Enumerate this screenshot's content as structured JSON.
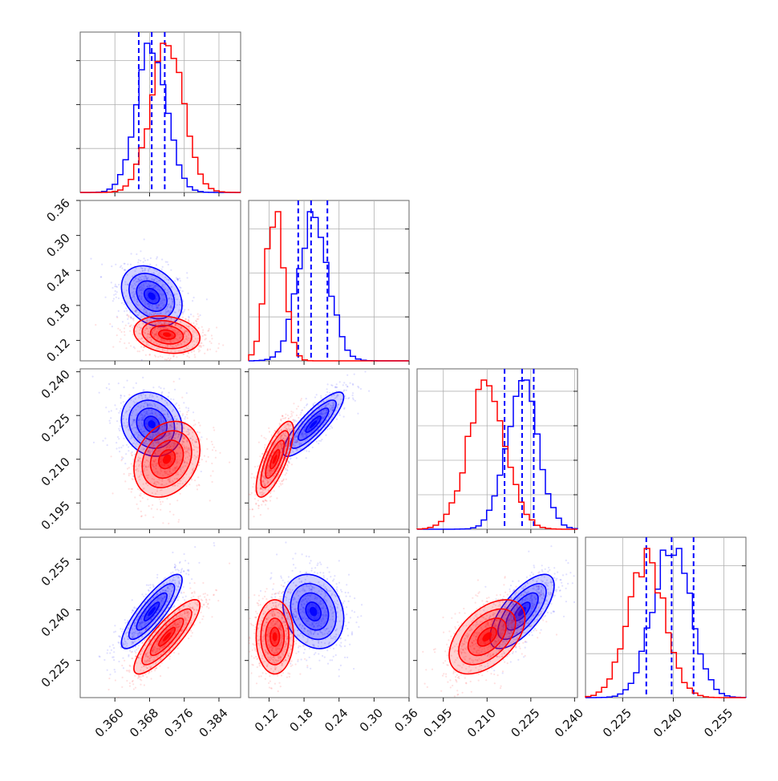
{
  "figure": {
    "type": "corner-plot",
    "parameters": 4
  },
  "colors": {
    "blue": "#0000ff",
    "red": "#ff0000",
    "grid": "#b0b0b0"
  },
  "chart_data": {
    "type": "scatter",
    "kind": "corner",
    "grid": true,
    "series": [
      {
        "name": "",
        "color": "#0000ff",
        "mean": [
          0.3685,
          0.196,
          0.222,
          0.2395
        ],
        "std": [
          0.0035,
          0.026,
          0.0055,
          0.0055
        ],
        "correlation": [
          [
            1,
            -0.3,
            -0.15,
            0.85
          ],
          [
            -0.3,
            1,
            0.85,
            -0.2
          ],
          [
            -0.15,
            0.85,
            1,
            0.7
          ],
          [
            0.85,
            -0.2,
            0.7,
            1
          ]
        ],
        "quantiles": [
          [
            0.3655,
            0.3685,
            0.3715
          ],
          [
            0.17,
            0.192,
            0.22
          ],
          [
            0.216,
            0.222,
            0.226
          ],
          [
            0.232,
            0.2395,
            0.246
          ]
        ]
      },
      {
        "name": "",
        "color": "#ff0000",
        "mean": [
          0.372,
          0.13,
          0.21,
          0.232
        ],
        "std": [
          0.0038,
          0.016,
          0.0065,
          0.0055
        ],
        "correlation": [
          [
            1,
            -0.2,
            0.25,
            0.85
          ],
          [
            -0.2,
            1,
            0.75,
            0.0
          ],
          [
            0.25,
            0.75,
            1,
            0.5
          ],
          [
            0.85,
            0.0,
            0.5,
            1
          ]
        ]
      }
    ],
    "axes": [
      {
        "range": [
          0.352,
          0.389
        ],
        "ticks": [
          "0.360",
          "0.368",
          "0.376",
          "0.384"
        ]
      },
      {
        "range": [
          0.085,
          0.36
        ],
        "ticks": [
          "0.12",
          "0.18",
          "0.24",
          "0.30",
          "0.36"
        ]
      },
      {
        "range": [
          0.186,
          0.241
        ],
        "ticks": [
          "0.195",
          "0.210",
          "0.225",
          "0.240"
        ]
      },
      {
        "range": [
          0.214,
          0.2615
        ],
        "ticks": [
          "0.225",
          "0.240",
          "0.255"
        ]
      }
    ],
    "diagonal_ylim": [
      [
        0,
        3600
      ],
      [
        0,
        3400
      ],
      [
        0,
        3900
      ],
      [
        0,
        3800
      ]
    ],
    "diagonal_hist_tick_counts": [
      3,
      3,
      4,
      3
    ],
    "title": "",
    "xlabel": "",
    "ylabel": ""
  },
  "tick_labels": {
    "bottom": [
      [
        "0.360",
        "0.368",
        "0.376",
        "0.384"
      ],
      [
        "0.12",
        "0.18",
        "0.24",
        "0.30",
        "0.36"
      ],
      [
        "0.195",
        "0.210",
        "0.225",
        "0.240"
      ],
      [
        "0.225",
        "0.240",
        "0.255"
      ]
    ],
    "left": [
      null,
      [
        "0.36",
        "0.30",
        "0.24",
        "0.18",
        "0.12"
      ],
      [
        "0.240",
        "0.225",
        "0.210",
        "0.195"
      ],
      [
        "0.255",
        "0.240",
        "0.225"
      ]
    ]
  }
}
